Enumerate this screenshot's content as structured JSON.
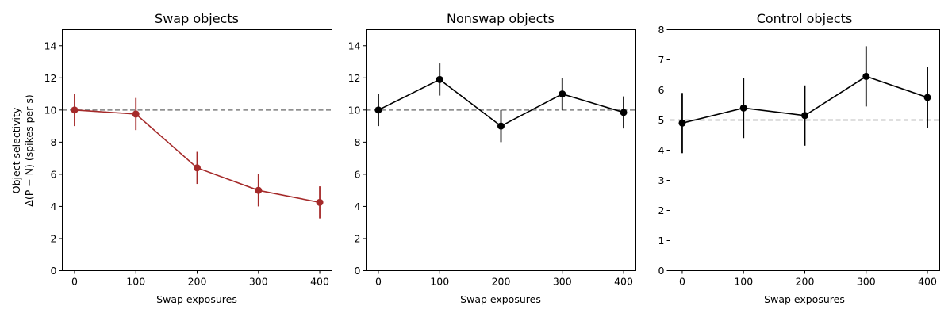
{
  "chart_data": [
    {
      "type": "line",
      "title": "Swap objects",
      "xlabel": "Swap exposures",
      "ylabel_lines": [
        "Object selectivity",
        "Δ(P − N) (spikes per s)"
      ],
      "x": [
        0,
        100,
        200,
        300,
        400
      ],
      "series": [
        {
          "color": "#a52a2a",
          "values": [
            10.0,
            9.75,
            6.4,
            5.0,
            4.25
          ],
          "errors": [
            1.0,
            1.0,
            1.0,
            1.0,
            1.0
          ]
        }
      ],
      "reference_line": {
        "y": 10,
        "style": "dashed",
        "color": "#808080"
      },
      "xlim": [
        -20,
        420
      ],
      "ylim": [
        0,
        15
      ],
      "xticks": [
        0,
        100,
        200,
        300,
        400
      ],
      "yticks": [
        0,
        2,
        4,
        6,
        8,
        10,
        12,
        14
      ],
      "grid": false
    },
    {
      "type": "line",
      "title": "Nonswap objects",
      "xlabel": "Swap exposures",
      "ylabel_lines": [],
      "x": [
        0,
        100,
        200,
        300,
        400
      ],
      "series": [
        {
          "color": "#000000",
          "values": [
            10.0,
            11.9,
            9.0,
            11.0,
            9.85
          ],
          "errors": [
            1.0,
            1.0,
            1.0,
            1.0,
            1.0
          ]
        }
      ],
      "reference_line": {
        "y": 10,
        "style": "dashed",
        "color": "#808080"
      },
      "xlim": [
        -20,
        420
      ],
      "ylim": [
        0,
        15
      ],
      "xticks": [
        0,
        100,
        200,
        300,
        400
      ],
      "yticks": [
        0,
        2,
        4,
        6,
        8,
        10,
        12,
        14
      ],
      "grid": false
    },
    {
      "type": "line",
      "title": "Control objects",
      "xlabel": "Swap exposures",
      "ylabel_lines": [],
      "x": [
        0,
        100,
        200,
        300,
        400
      ],
      "series": [
        {
          "color": "#000000",
          "values": [
            4.9,
            5.4,
            5.15,
            6.45,
            5.75
          ],
          "errors": [
            1.0,
            1.0,
            1.0,
            1.0,
            1.0
          ]
        }
      ],
      "reference_line": {
        "y": 5,
        "style": "dashed",
        "color": "#808080"
      },
      "xlim": [
        -20,
        420
      ],
      "ylim": [
        0,
        8
      ],
      "xticks": [
        0,
        100,
        200,
        300,
        400
      ],
      "yticks": [
        0,
        1,
        2,
        3,
        4,
        5,
        6,
        7,
        8
      ],
      "grid": false
    }
  ]
}
